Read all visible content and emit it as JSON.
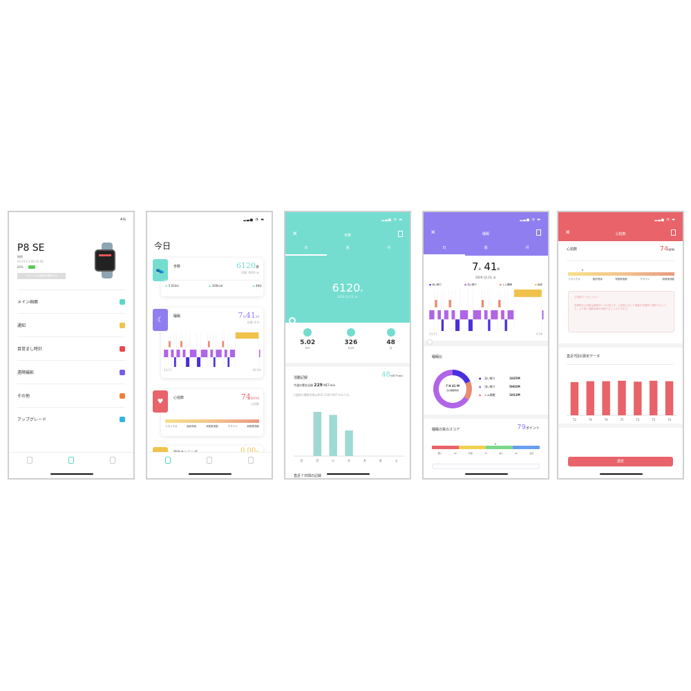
{
  "colors": {
    "teal": "#74ddd0",
    "purple": "#8f7ef0",
    "red": "#e8636a",
    "yellow": "#f0c14b",
    "deep": "#4a2fe0",
    "light": "#b065e8",
    "rem": "#ea8a70",
    "awake": "#f0c14b"
  },
  "device": {
    "status": "4G",
    "name": "P8 SE",
    "connection": "接続",
    "mac": "FE:C9:C3:8D:5E:6E",
    "battery": "84%",
    "battery_level": 84,
    "disconnect": "デバイスとの接続を解除する",
    "menu": [
      {
        "label": "メイン画面",
        "icon": "layout-icon",
        "color": "#5dd6c4"
      },
      {
        "label": "通知",
        "icon": "message-icon",
        "color": "#f0c14b"
      },
      {
        "label": "目覚まし時計",
        "icon": "alarm-icon",
        "color": "#e8484f"
      },
      {
        "label": "遠隔撮影",
        "icon": "camera-icon",
        "color": "#7b5cf0"
      },
      {
        "label": "その他",
        "icon": "gear-icon",
        "color": "#f08040"
      },
      {
        "label": "アップグレード",
        "icon": "cloud-upload-icon",
        "color": "#35b6e0"
      }
    ]
  },
  "today": {
    "title": "今日",
    "steps": {
      "label": "歩数",
      "value": "6120",
      "unit": "歩",
      "goal": "目標: 8000 歩",
      "distance": "5.02km",
      "calories": "326kcal",
      "time": "48分"
    },
    "sleep": {
      "label": "睡眠",
      "h": "7",
      "m": "41",
      "hu": "H",
      "mu": "M",
      "sub": "目標: 8 H",
      "start": "23:17",
      "end": "06:58"
    },
    "heart": {
      "label": "心拍数",
      "value": "74",
      "unit": "BPM",
      "sub": "心拍数",
      "zones": [
        "リラックス",
        "脂肪燃焼",
        "有酸素運動",
        "マラソン",
        "無酸素運動"
      ]
    },
    "run": {
      "label": "屋外ランニング",
      "value": "0.00",
      "unit": "m"
    }
  },
  "steps_detail": {
    "title": "歩数",
    "tabs": [
      "日",
      "週",
      "月"
    ],
    "value": "6120",
    "unit": "歩",
    "date": "2020-12-23, 水",
    "stats": [
      {
        "value": "5.02",
        "unit": "km",
        "icon": "location-icon"
      },
      {
        "value": "326",
        "unit": "kcal",
        "icon": "flame-icon"
      },
      {
        "value": "48",
        "unit": "分",
        "icon": "clock-icon"
      }
    ],
    "activity_title": "活動記録",
    "met_value": "48",
    "met_unit": "MET-min",
    "week_label": "今週の累計記録",
    "week_value": "229",
    "week_unit": "MET-min",
    "goal_text": "1週間の運動目標は600-1500 MET-minです。",
    "recent_title": "直近７日間の記録"
  },
  "sleep_detail": {
    "title": "睡眠",
    "tabs": [
      "日",
      "週",
      "月"
    ],
    "h": "7",
    "m": "41",
    "hu": "H",
    "mu": "M",
    "date": "2020-12-23, 水",
    "legend": [
      "深い眠り",
      "浅い眠り",
      "レム睡眠",
      "起床"
    ],
    "start": "23:17",
    "end": "6:58",
    "ratio_title": "睡眠比",
    "donut_center": "7 H 41 M",
    "donut_sub": "合計睡眠時間",
    "ratio": [
      {
        "label": "深い眠り",
        "value": "1H25M",
        "minutes": 85,
        "color": "#4a2fe0"
      },
      {
        "label": "浅い眠り",
        "value": "5H02M",
        "minutes": 302,
        "color": "#b065e8"
      },
      {
        "label": "レム睡眠",
        "value": "1H13M",
        "minutes": 73,
        "color": "#ea8a70"
      }
    ],
    "score_title": "睡眠の質のスコア",
    "score": "79",
    "score_unit": "ポイント",
    "score_labels": [
      "悪い",
      "60",
      "普通",
      "75",
      "良い",
      "90",
      "最高"
    ]
  },
  "hypnogram": [
    [
      "light",
      12
    ],
    [
      "rem",
      6
    ],
    [
      "light",
      8
    ],
    [
      "deep",
      6
    ],
    [
      "light",
      10
    ],
    [
      "rem",
      6
    ],
    [
      "light",
      8
    ],
    [
      "deep",
      10
    ],
    [
      "light",
      18
    ],
    [
      "deep",
      10
    ],
    [
      "light",
      18
    ],
    [
      "rem",
      6
    ],
    [
      "light",
      8
    ],
    [
      "deep",
      6
    ],
    [
      "light",
      16
    ],
    [
      "rem",
      6
    ],
    [
      "light",
      8
    ],
    [
      "deep",
      6
    ],
    [
      "light",
      14
    ],
    [
      "awake",
      60
    ],
    [
      "light",
      4
    ]
  ],
  "heart_detail": {
    "title": "心拍数",
    "label": "心拍数",
    "value": "74",
    "unit": "BPM",
    "zones": [
      "リラックス",
      "脂肪燃焼",
      "有酸素運動",
      "マラソン",
      "無酸素運動"
    ],
    "info_title": "心拍数データについて",
    "info_text": "安静時の心拍数は通常60〜100回です。心拍数に応じた運動を意識的に選択することで、より良い運動効果を実現することができます。",
    "recent_title": "直近7回の測定データ",
    "measure": "測定"
  },
  "chart_data": [
    {
      "type": "bar",
      "categories": [
        "日",
        "月",
        "火",
        "水",
        "木",
        "金",
        "土"
      ],
      "values": [
        0,
        100,
        93,
        58,
        0,
        0,
        0
      ],
      "title": "",
      "xlabel": "",
      "ylabel": ""
    },
    {
      "type": "bar",
      "categories": [
        "",
        "",
        "",
        "",
        "",
        "",
        ""
      ],
      "values": [
        72,
        74,
        74,
        75,
        73,
        75,
        74
      ],
      "labels": [
        "72",
        "74",
        "74",
        "75",
        "73",
        "75",
        "74"
      ],
      "title": "",
      "ylim": [
        0,
        90
      ]
    }
  ]
}
